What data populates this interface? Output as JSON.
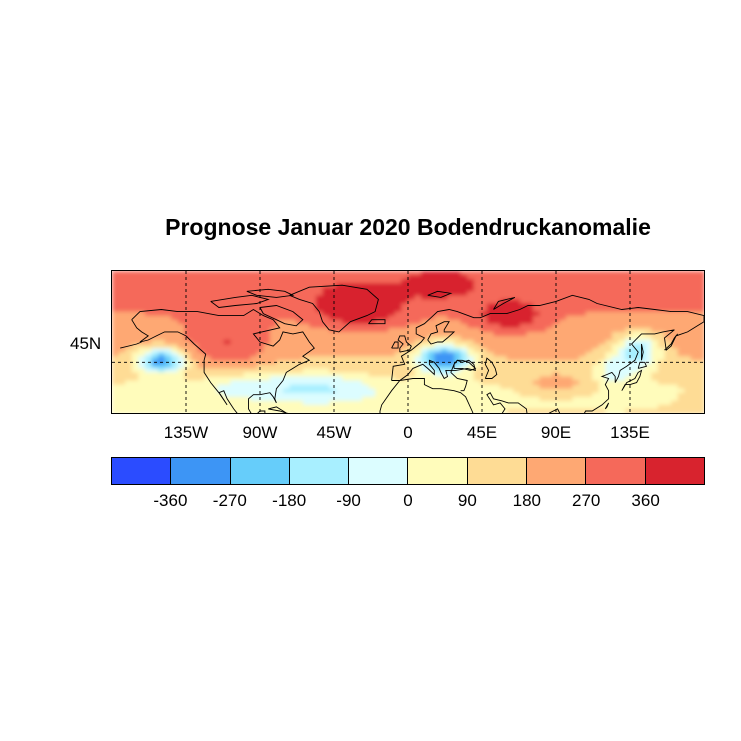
{
  "title": "Prognose Januar 2020 Bodendruckanomalie",
  "map": {
    "lat_labels": [
      {
        "text": "45N"
      }
    ],
    "lon_labels": [
      "135W",
      "90W",
      "45W",
      "0",
      "45E",
      "90E",
      "135E"
    ]
  },
  "colorbar": {
    "colors": [
      "#2b4cff",
      "#3d95f5",
      "#66cdfa",
      "#a8efff",
      "#dcfdff",
      "#fffcbb",
      "#fedc95",
      "#fea873",
      "#f5695a",
      "#d8232e"
    ],
    "labels": [
      "-360",
      "-270",
      "-180",
      "-90",
      "0",
      "90",
      "180",
      "270",
      "360"
    ]
  },
  "chart_data": {
    "type": "heatmap",
    "title": "Prognose Januar 2020 Bodendruckanomalie",
    "x_ticks": [
      "135W",
      "90W",
      "45W",
      "0",
      "45E",
      "90E",
      "135E"
    ],
    "y_ticks": [
      "45N"
    ],
    "lon_range": [
      -180,
      180
    ],
    "lat_range": [
      20,
      90
    ],
    "colorbar_levels": [
      -360,
      -270,
      -180,
      -90,
      0,
      90,
      180,
      270,
      360
    ],
    "anomaly_regions": [
      {
        "region": "North Pacific near 150W, 45N",
        "value": -300
      },
      {
        "region": "Central Europe / Balkans",
        "value": -330
      },
      {
        "region": "Northeast Asia near 140E, 50N",
        "value": -200
      },
      {
        "region": "Greenland / North Atlantic 60-75N",
        "value": 340
      },
      {
        "region": "Northern Russia / Scandinavia",
        "value": 330
      },
      {
        "region": "Arctic band north of 65N",
        "value": 220
      },
      {
        "region": "Subtropical Atlantic 20-35N",
        "value": -80
      }
    ]
  }
}
